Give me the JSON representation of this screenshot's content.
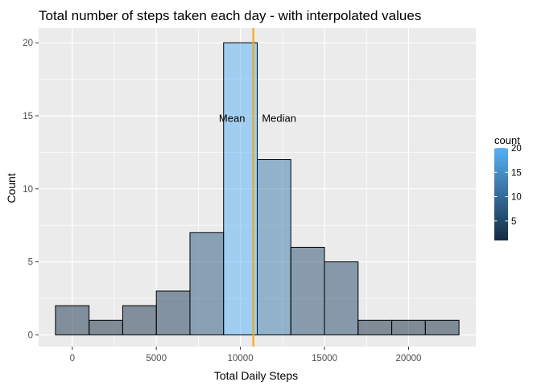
{
  "chart_data": {
    "type": "bar",
    "title": "Total number of steps taken each day - with interpolated values",
    "xlabel": "Total Daily Steps",
    "ylabel": "Count",
    "xlim": [
      -2000,
      24000
    ],
    "ylim": [
      -0.8,
      21
    ],
    "x_ticks": [
      0,
      5000,
      10000,
      15000,
      20000
    ],
    "x_tick_labels": [
      "0",
      "5000",
      "10000",
      "15000",
      "20000"
    ],
    "y_ticks": [
      0,
      5,
      10,
      15,
      20
    ],
    "y_tick_labels": [
      "0",
      "5",
      "10",
      "15",
      "20"
    ],
    "bin_width": 2000,
    "bins": [
      {
        "start": -1000,
        "end": 1000,
        "count": 2
      },
      {
        "start": 1000,
        "end": 3000,
        "count": 1
      },
      {
        "start": 3000,
        "end": 5000,
        "count": 2
      },
      {
        "start": 5000,
        "end": 7000,
        "count": 3
      },
      {
        "start": 7000,
        "end": 9000,
        "count": 7
      },
      {
        "start": 9000,
        "end": 11000,
        "count": 20
      },
      {
        "start": 11000,
        "end": 13000,
        "count": 12
      },
      {
        "start": 13000,
        "end": 15000,
        "count": 6
      },
      {
        "start": 15000,
        "end": 17000,
        "count": 5
      },
      {
        "start": 17000,
        "end": 19000,
        "count": 1
      },
      {
        "start": 19000,
        "end": 21000,
        "count": 1
      },
      {
        "start": 21000,
        "end": 23000,
        "count": 1
      }
    ],
    "vlines": [
      {
        "name": "Mean",
        "x": 10766,
        "color": "#FFA500"
      },
      {
        "name": "Median",
        "x": 10766,
        "color": "#FFA500"
      }
    ],
    "annotations": [
      {
        "text": "Mean",
        "x": 9500,
        "y": 14.8
      },
      {
        "text": "Median",
        "x": 12300,
        "y": 14.8
      }
    ],
    "legend": {
      "title": "count",
      "placement": "right",
      "ticks": [
        5,
        10,
        15,
        20
      ],
      "tick_labels": [
        "5",
        "10",
        "15",
        "20"
      ],
      "range": [
        1,
        20
      ],
      "color_low": "#132B43",
      "color_high": "#56B1F7"
    },
    "grid": true,
    "panel_background": "#EBEBEB",
    "grid_color": "#FFFFFF",
    "bar_outline": "#000000",
    "bar_alpha": 0.5
  }
}
